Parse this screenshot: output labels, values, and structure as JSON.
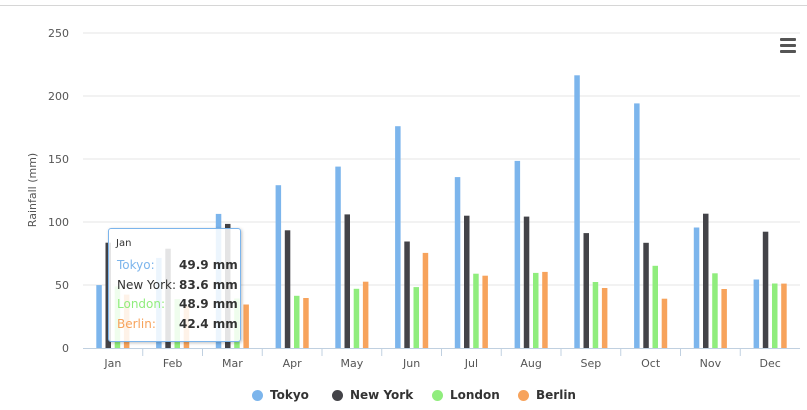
{
  "chart_data": {
    "type": "bar",
    "title": "",
    "xlabel": "",
    "ylabel": "Rainfall (mm)",
    "ylim": [
      0,
      250
    ],
    "yticks": [
      "0",
      "50",
      "100",
      "150",
      "200",
      "250"
    ],
    "categories": [
      "Jan",
      "Feb",
      "Mar",
      "Apr",
      "May",
      "Jun",
      "Jul",
      "Aug",
      "Sep",
      "Oct",
      "Nov",
      "Dec"
    ],
    "grid": true,
    "legend_position": "bottom-center",
    "series": [
      {
        "name": "Tokyo",
        "color": "#7cb5ec",
        "values": [
          49.9,
          71.5,
          106.4,
          129.2,
          144.0,
          176.0,
          135.6,
          148.5,
          216.4,
          194.1,
          95.6,
          54.4
        ]
      },
      {
        "name": "New York",
        "color": "#434348",
        "values": [
          83.6,
          78.8,
          98.5,
          93.4,
          106.0,
          84.5,
          105.0,
          104.3,
          91.2,
          83.5,
          106.6,
          92.3
        ]
      },
      {
        "name": "London",
        "color": "#90ed7d",
        "values": [
          48.9,
          38.8,
          39.3,
          41.4,
          47.0,
          48.3,
          59.0,
          59.6,
          52.4,
          65.2,
          59.3,
          51.2
        ]
      },
      {
        "name": "Berlin",
        "color": "#f7a35c",
        "values": [
          42.4,
          33.2,
          34.5,
          39.7,
          52.6,
          75.5,
          57.4,
          60.4,
          47.6,
          39.1,
          46.8,
          51.1
        ]
      }
    ]
  },
  "tooltip": {
    "header": "Jan",
    "rows": [
      {
        "name": "Tokyo:",
        "value": "49.9 mm",
        "color": "#7cb5ec"
      },
      {
        "name": "New York:",
        "value": "83.6 mm",
        "color": "#333333"
      },
      {
        "name": "London:",
        "value": "48.9 mm",
        "color": "#90ed7d"
      },
      {
        "name": "Berlin:",
        "value": "42.4 mm",
        "color": "#f7a35c"
      }
    ]
  },
  "legend": [
    {
      "label": "Tokyo",
      "color": "#7cb5ec"
    },
    {
      "label": "New York",
      "color": "#434348"
    },
    {
      "label": "London",
      "color": "#90ed7d"
    },
    {
      "label": "Berlin",
      "color": "#f7a35c"
    }
  ],
  "menu": {
    "icon": "hamburger-menu-icon"
  }
}
